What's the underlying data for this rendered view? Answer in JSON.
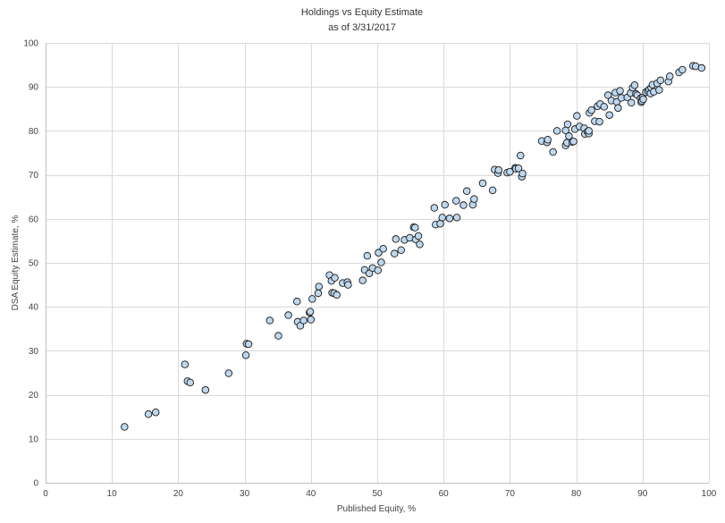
{
  "chart_data": {
    "type": "scatter",
    "title": "Holdings vs Equity Estimate",
    "subtitle": "as of 3/31/2017",
    "xlabel": "Published Equity, %",
    "ylabel": "DSA Equity Estimate, %",
    "xlim": [
      0,
      100
    ],
    "ylim": [
      0,
      100
    ],
    "x_ticks": [
      0,
      10,
      20,
      30,
      40,
      50,
      60,
      70,
      80,
      90,
      100
    ],
    "y_ticks": [
      0,
      10,
      20,
      30,
      40,
      50,
      60,
      70,
      80,
      90,
      100
    ],
    "grid": true,
    "legend": "none",
    "colors": {
      "marker_fill": "#bdd7ee",
      "marker_stroke": "#1a1a1a",
      "grid": "#d9d9d9",
      "axis": "#bfbfbf"
    },
    "points": [
      [
        11.9,
        12.7
      ],
      [
        15.5,
        15.6
      ],
      [
        16.6,
        16.0
      ],
      [
        21.0,
        26.9
      ],
      [
        21.4,
        23.1
      ],
      [
        21.8,
        22.8
      ],
      [
        24.1,
        21.1
      ],
      [
        27.6,
        24.9
      ],
      [
        30.2,
        29.0
      ],
      [
        30.3,
        31.6
      ],
      [
        30.6,
        31.5
      ],
      [
        33.8,
        36.9
      ],
      [
        35.1,
        33.4
      ],
      [
        36.6,
        38.1
      ],
      [
        37.9,
        41.2
      ],
      [
        38.0,
        36.6
      ],
      [
        38.4,
        35.7
      ],
      [
        38.9,
        36.9
      ],
      [
        39.8,
        38.7
      ],
      [
        39.9,
        38.9
      ],
      [
        40.0,
        37.1
      ],
      [
        40.2,
        41.8
      ],
      [
        41.1,
        43.1
      ],
      [
        41.2,
        44.6
      ],
      [
        42.8,
        47.2
      ],
      [
        43.1,
        45.9
      ],
      [
        43.2,
        43.2
      ],
      [
        43.5,
        43.1
      ],
      [
        43.6,
        46.6
      ],
      [
        43.9,
        42.7
      ],
      [
        44.8,
        45.4
      ],
      [
        45.5,
        45.6
      ],
      [
        45.6,
        45.0
      ],
      [
        47.8,
        46.0
      ],
      [
        48.1,
        48.4
      ],
      [
        48.5,
        51.6
      ],
      [
        48.8,
        47.6
      ],
      [
        49.3,
        48.8
      ],
      [
        50.1,
        48.3
      ],
      [
        50.2,
        52.3
      ],
      [
        50.6,
        50.1
      ],
      [
        50.9,
        53.2
      ],
      [
        52.6,
        52.1
      ],
      [
        52.8,
        55.4
      ],
      [
        53.6,
        52.9
      ],
      [
        54.1,
        55.2
      ],
      [
        54.9,
        55.7
      ],
      [
        55.5,
        58.1
      ],
      [
        55.7,
        58.0
      ],
      [
        55.8,
        55.3
      ],
      [
        56.2,
        56.1
      ],
      [
        56.4,
        54.2
      ],
      [
        58.6,
        62.5
      ],
      [
        58.8,
        58.7
      ],
      [
        59.5,
        58.9
      ],
      [
        59.8,
        60.3
      ],
      [
        60.2,
        63.2
      ],
      [
        60.9,
        60.1
      ],
      [
        61.9,
        64.1
      ],
      [
        62.0,
        60.3
      ],
      [
        63.0,
        63.1
      ],
      [
        63.5,
        66.3
      ],
      [
        64.4,
        63.2
      ],
      [
        64.6,
        64.5
      ],
      [
        65.9,
        68.1
      ],
      [
        67.4,
        66.5
      ],
      [
        67.7,
        71.2
      ],
      [
        68.2,
        70.4
      ],
      [
        68.3,
        71.1
      ],
      [
        69.6,
        70.5
      ],
      [
        70.0,
        70.7
      ],
      [
        70.8,
        71.6
      ],
      [
        70.9,
        71.4
      ],
      [
        71.3,
        71.5
      ],
      [
        71.6,
        74.4
      ],
      [
        71.8,
        69.6
      ],
      [
        71.9,
        70.3
      ],
      [
        74.8,
        77.7
      ],
      [
        75.6,
        77.4
      ],
      [
        75.7,
        78.0
      ],
      [
        76.5,
        75.2
      ],
      [
        77.1,
        80.0
      ],
      [
        78.4,
        80.1
      ],
      [
        78.4,
        76.7
      ],
      [
        78.6,
        77.3
      ],
      [
        78.7,
        81.5
      ],
      [
        78.9,
        78.8
      ],
      [
        79.4,
        77.5
      ],
      [
        79.6,
        77.6
      ],
      [
        79.8,
        80.4
      ],
      [
        80.1,
        83.4
      ],
      [
        80.5,
        81.0
      ],
      [
        81.2,
        80.6
      ],
      [
        81.3,
        79.3
      ],
      [
        81.7,
        79.8
      ],
      [
        81.9,
        79.4
      ],
      [
        81.9,
        80.0
      ],
      [
        82.0,
        84.1
      ],
      [
        82.3,
        84.7
      ],
      [
        82.8,
        82.2
      ],
      [
        83.2,
        85.6
      ],
      [
        83.5,
        82.1
      ],
      [
        83.6,
        86.1
      ],
      [
        84.2,
        85.5
      ],
      [
        84.8,
        88.1
      ],
      [
        85.0,
        83.6
      ],
      [
        85.3,
        86.9
      ],
      [
        85.9,
        88.7
      ],
      [
        86.1,
        86.6
      ],
      [
        86.3,
        85.2
      ],
      [
        86.6,
        89.1
      ],
      [
        86.8,
        87.5
      ],
      [
        87.7,
        87.6
      ],
      [
        88.2,
        88.6
      ],
      [
        88.3,
        86.4
      ],
      [
        88.5,
        89.8
      ],
      [
        88.8,
        90.4
      ],
      [
        89.0,
        88.4
      ],
      [
        89.2,
        88.1
      ],
      [
        89.7,
        87.4
      ],
      [
        89.8,
        86.5
      ],
      [
        89.9,
        86.8
      ],
      [
        90.0,
        87.6
      ],
      [
        90.1,
        87.2
      ],
      [
        90.5,
        88.8
      ],
      [
        90.8,
        89.1
      ],
      [
        91.0,
        89.4
      ],
      [
        91.2,
        88.5
      ],
      [
        91.3,
        89.8
      ],
      [
        91.5,
        90.5
      ],
      [
        91.7,
        88.9
      ],
      [
        92.2,
        90.8
      ],
      [
        92.5,
        89.3
      ],
      [
        92.7,
        91.5
      ],
      [
        93.9,
        91.2
      ],
      [
        94.1,
        92.4
      ],
      [
        95.5,
        93.3
      ],
      [
        96.0,
        93.9
      ],
      [
        97.6,
        94.8
      ],
      [
        98.0,
        94.7
      ],
      [
        98.9,
        94.3
      ]
    ]
  }
}
